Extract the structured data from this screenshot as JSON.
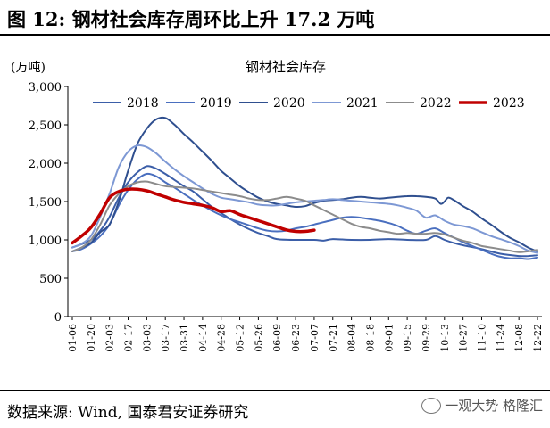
{
  "figure": {
    "label": "图 12:",
    "title": "钢材社会库存周环比上升 17.2 万吨",
    "source": "数据来源: Wind, 国泰君安证券研究",
    "watermark": "一观大势 格隆汇"
  },
  "chart_data": {
    "type": "line",
    "title": "钢材社会库存",
    "unit_label": "(万吨)",
    "ylim": [
      0,
      3000
    ],
    "yticks": [
      0,
      500,
      1000,
      1500,
      2000,
      2500,
      3000
    ],
    "ytick_labels": [
      "0",
      "500",
      "1,000",
      "1,500",
      "2,000",
      "2,500",
      "3,000"
    ],
    "x_tick_labels": [
      "01-06",
      "01-20",
      "02-03",
      "02-17",
      "03-03",
      "03-17",
      "03-31",
      "04-14",
      "04-28",
      "05-12",
      "05-26",
      "06-09",
      "06-23",
      "07-07",
      "07-21",
      "08-04",
      "08-18",
      "09-01",
      "09-15",
      "09-29",
      "10-13",
      "10-27",
      "11-10",
      "11-24",
      "12-08",
      "12-22"
    ],
    "x_range": [
      0,
      25
    ],
    "grid": false,
    "legend_position": "top",
    "series": [
      {
        "name": "2018",
        "color": "#3b5ea8",
        "width": 2,
        "points": [
          [
            0,
            900
          ],
          [
            1,
            1000
          ],
          [
            1.6,
            1150
          ],
          [
            2,
            1300
          ],
          [
            2.5,
            1550
          ],
          [
            3,
            1750
          ],
          [
            3.5,
            1880
          ],
          [
            4,
            1960
          ],
          [
            4.5,
            1930
          ],
          [
            5,
            1860
          ],
          [
            5.5,
            1780
          ],
          [
            6,
            1700
          ],
          [
            6.5,
            1630
          ],
          [
            7,
            1530
          ],
          [
            7.5,
            1430
          ],
          [
            8,
            1350
          ],
          [
            8.5,
            1270
          ],
          [
            9,
            1200
          ],
          [
            9.5,
            1140
          ],
          [
            10,
            1090
          ],
          [
            10.5,
            1050
          ],
          [
            11,
            1010
          ],
          [
            12,
            1000
          ],
          [
            13,
            1000
          ],
          [
            13.5,
            990
          ],
          [
            14,
            1010
          ],
          [
            15,
            1000
          ],
          [
            16,
            1000
          ],
          [
            17,
            1010
          ],
          [
            18,
            1000
          ],
          [
            19,
            1000
          ],
          [
            19.5,
            1050
          ],
          [
            20,
            1000
          ],
          [
            20.5,
            960
          ],
          [
            21,
            930
          ],
          [
            22,
            880
          ],
          [
            23,
            820
          ],
          [
            24,
            790
          ],
          [
            24.5,
            790
          ],
          [
            25,
            800
          ]
        ]
      },
      {
        "name": "2019",
        "color": "#4a6fbf",
        "width": 2,
        "points": [
          [
            0,
            850
          ],
          [
            0.5,
            880
          ],
          [
            1,
            950
          ],
          [
            1.5,
            1050
          ],
          [
            2,
            1200
          ],
          [
            2.5,
            1450
          ],
          [
            3,
            1650
          ],
          [
            3.5,
            1790
          ],
          [
            4,
            1860
          ],
          [
            4.5,
            1830
          ],
          [
            5,
            1750
          ],
          [
            5.5,
            1680
          ],
          [
            6,
            1600
          ],
          [
            6.5,
            1520
          ],
          [
            7,
            1450
          ],
          [
            7.5,
            1380
          ],
          [
            8,
            1320
          ],
          [
            8.5,
            1270
          ],
          [
            9,
            1230
          ],
          [
            9.5,
            1190
          ],
          [
            10,
            1150
          ],
          [
            10.5,
            1120
          ],
          [
            11,
            1110
          ],
          [
            11.5,
            1120
          ],
          [
            12,
            1150
          ],
          [
            12.5,
            1170
          ],
          [
            13,
            1200
          ],
          [
            13.5,
            1230
          ],
          [
            14,
            1260
          ],
          [
            14.5,
            1290
          ],
          [
            15,
            1300
          ],
          [
            15.5,
            1290
          ],
          [
            16,
            1270
          ],
          [
            16.5,
            1250
          ],
          [
            17,
            1220
          ],
          [
            17.5,
            1180
          ],
          [
            18,
            1120
          ],
          [
            18.5,
            1080
          ],
          [
            19,
            1120
          ],
          [
            19.5,
            1150
          ],
          [
            20,
            1090
          ],
          [
            20.5,
            1030
          ],
          [
            21,
            970
          ],
          [
            21.5,
            920
          ],
          [
            22,
            870
          ],
          [
            22.5,
            820
          ],
          [
            23,
            780
          ],
          [
            23.5,
            760
          ],
          [
            24,
            760
          ],
          [
            24.5,
            750
          ],
          [
            25,
            770
          ]
        ]
      },
      {
        "name": "2020",
        "color": "#2f4f8f",
        "width": 2,
        "points": [
          [
            0,
            850
          ],
          [
            0.5,
            900
          ],
          [
            1,
            960
          ],
          [
            1.5,
            1100
          ],
          [
            2,
            1200
          ],
          [
            2.5,
            1500
          ],
          [
            3,
            1900
          ],
          [
            3.5,
            2250
          ],
          [
            4,
            2450
          ],
          [
            4.5,
            2570
          ],
          [
            5,
            2590
          ],
          [
            5.5,
            2500
          ],
          [
            6,
            2380
          ],
          [
            6.5,
            2270
          ],
          [
            7,
            2150
          ],
          [
            7.5,
            2030
          ],
          [
            8,
            1900
          ],
          [
            8.5,
            1800
          ],
          [
            9,
            1700
          ],
          [
            9.5,
            1620
          ],
          [
            10,
            1550
          ],
          [
            10.5,
            1500
          ],
          [
            11,
            1470
          ],
          [
            11.5,
            1450
          ],
          [
            12,
            1430
          ],
          [
            12.5,
            1440
          ],
          [
            13,
            1480
          ],
          [
            13.5,
            1510
          ],
          [
            14,
            1520
          ],
          [
            14.5,
            1530
          ],
          [
            15,
            1550
          ],
          [
            15.5,
            1560
          ],
          [
            16,
            1550
          ],
          [
            16.5,
            1540
          ],
          [
            17,
            1550
          ],
          [
            17.5,
            1560
          ],
          [
            18,
            1570
          ],
          [
            18.5,
            1570
          ],
          [
            19,
            1560
          ],
          [
            19.5,
            1540
          ],
          [
            19.8,
            1470
          ],
          [
            20,
            1500
          ],
          [
            20.2,
            1550
          ],
          [
            20.5,
            1520
          ],
          [
            21,
            1440
          ],
          [
            21.5,
            1370
          ],
          [
            22,
            1280
          ],
          [
            22.5,
            1200
          ],
          [
            23,
            1110
          ],
          [
            23.5,
            1030
          ],
          [
            24,
            970
          ],
          [
            24.5,
            900
          ],
          [
            25,
            850
          ]
        ]
      },
      {
        "name": "2021",
        "color": "#7d98d4",
        "width": 2,
        "points": [
          [
            0,
            900
          ],
          [
            0.5,
            950
          ],
          [
            1,
            1050
          ],
          [
            1.5,
            1300
          ],
          [
            2,
            1600
          ],
          [
            2.5,
            1950
          ],
          [
            3,
            2150
          ],
          [
            3.5,
            2230
          ],
          [
            4,
            2210
          ],
          [
            4.5,
            2130
          ],
          [
            5,
            2020
          ],
          [
            5.5,
            1920
          ],
          [
            6,
            1830
          ],
          [
            6.5,
            1750
          ],
          [
            7,
            1670
          ],
          [
            7.5,
            1600
          ],
          [
            8,
            1550
          ],
          [
            8.5,
            1530
          ],
          [
            9,
            1510
          ],
          [
            9.5,
            1490
          ],
          [
            10,
            1460
          ],
          [
            10.5,
            1450
          ],
          [
            11,
            1450
          ],
          [
            11.5,
            1470
          ],
          [
            12,
            1490
          ],
          [
            12.5,
            1500
          ],
          [
            13,
            1510
          ],
          [
            13.5,
            1520
          ],
          [
            14,
            1530
          ],
          [
            14.5,
            1520
          ],
          [
            15,
            1510
          ],
          [
            15.5,
            1500
          ],
          [
            16,
            1490
          ],
          [
            16.5,
            1480
          ],
          [
            17,
            1470
          ],
          [
            17.5,
            1450
          ],
          [
            18,
            1420
          ],
          [
            18.5,
            1380
          ],
          [
            19,
            1290
          ],
          [
            19.5,
            1320
          ],
          [
            20,
            1250
          ],
          [
            20.5,
            1200
          ],
          [
            21,
            1180
          ],
          [
            21.5,
            1150
          ],
          [
            22,
            1100
          ],
          [
            22.5,
            1050
          ],
          [
            23,
            1010
          ],
          [
            23.5,
            970
          ],
          [
            24,
            920
          ],
          [
            24.5,
            860
          ],
          [
            25,
            830
          ]
        ]
      },
      {
        "name": "2022",
        "color": "#8c8c8c",
        "width": 2,
        "points": [
          [
            0,
            850
          ],
          [
            0.5,
            900
          ],
          [
            1,
            1000
          ],
          [
            1.5,
            1200
          ],
          [
            2,
            1450
          ],
          [
            2.5,
            1600
          ],
          [
            3,
            1700
          ],
          [
            3.5,
            1750
          ],
          [
            4,
            1760
          ],
          [
            4.5,
            1730
          ],
          [
            5,
            1700
          ],
          [
            5.5,
            1690
          ],
          [
            6,
            1680
          ],
          [
            6.5,
            1670
          ],
          [
            7,
            1650
          ],
          [
            7.5,
            1630
          ],
          [
            8,
            1610
          ],
          [
            8.5,
            1590
          ],
          [
            9,
            1570
          ],
          [
            9.5,
            1540
          ],
          [
            10,
            1520
          ],
          [
            10.5,
            1520
          ],
          [
            11,
            1540
          ],
          [
            11.5,
            1560
          ],
          [
            12,
            1540
          ],
          [
            12.5,
            1510
          ],
          [
            13,
            1450
          ],
          [
            13.5,
            1390
          ],
          [
            14,
            1330
          ],
          [
            14.5,
            1270
          ],
          [
            15,
            1210
          ],
          [
            15.5,
            1170
          ],
          [
            16,
            1150
          ],
          [
            16.5,
            1120
          ],
          [
            17,
            1100
          ],
          [
            17.5,
            1080
          ],
          [
            18,
            1090
          ],
          [
            18.5,
            1080
          ],
          [
            19,
            1080
          ],
          [
            19.5,
            1090
          ],
          [
            20,
            1070
          ],
          [
            20.5,
            1030
          ],
          [
            21,
            990
          ],
          [
            21.5,
            960
          ],
          [
            22,
            920
          ],
          [
            22.5,
            900
          ],
          [
            23,
            880
          ],
          [
            23.5,
            860
          ],
          [
            24,
            840
          ],
          [
            24.5,
            850
          ],
          [
            25,
            870
          ]
        ]
      },
      {
        "name": "2023",
        "color": "#c00000",
        "width": 3.5,
        "points": [
          [
            0,
            960
          ],
          [
            0.5,
            1050
          ],
          [
            1,
            1160
          ],
          [
            1.5,
            1340
          ],
          [
            2,
            1550
          ],
          [
            2.5,
            1630
          ],
          [
            3,
            1660
          ],
          [
            3.5,
            1660
          ],
          [
            4,
            1640
          ],
          [
            4.5,
            1600
          ],
          [
            5,
            1560
          ],
          [
            5.5,
            1520
          ],
          [
            6,
            1490
          ],
          [
            6.5,
            1470
          ],
          [
            7,
            1450
          ],
          [
            7.5,
            1420
          ],
          [
            8,
            1370
          ],
          [
            8.5,
            1380
          ],
          [
            9,
            1330
          ],
          [
            9.5,
            1290
          ],
          [
            10,
            1250
          ],
          [
            10.5,
            1210
          ],
          [
            11,
            1170
          ],
          [
            11.5,
            1130
          ],
          [
            12,
            1110
          ],
          [
            12.5,
            1110
          ],
          [
            13,
            1127
          ]
        ]
      }
    ]
  }
}
